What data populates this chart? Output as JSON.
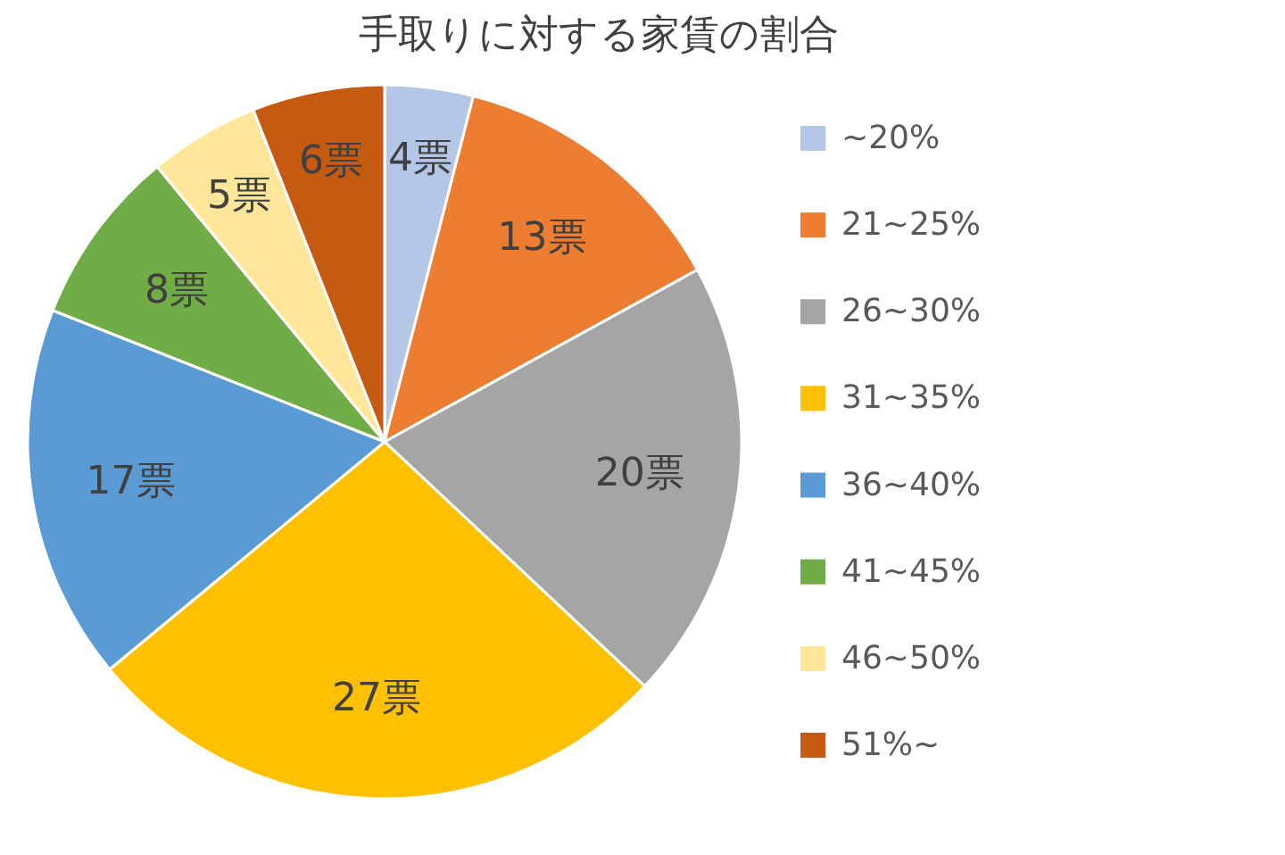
{
  "chart_data": {
    "type": "pie",
    "title": "手取りに対する家賃の割合",
    "categories": [
      "~20%",
      "21~25%",
      "26~30%",
      "31~35%",
      "36~40%",
      "41~45%",
      "46~50%",
      "51%~"
    ],
    "values": [
      4,
      13,
      20,
      27,
      17,
      8,
      5,
      6
    ],
    "colors": [
      "#b4c7e7",
      "#ed7d31",
      "#a5a5a5",
      "#ffc000",
      "#5b9bd5",
      "#70ad47",
      "#ffe699",
      "#c55a11"
    ],
    "value_labels": [
      "4票",
      "13票",
      "20票",
      "27票",
      "17票",
      "8票",
      "5票",
      "6票"
    ],
    "legend": "right"
  }
}
